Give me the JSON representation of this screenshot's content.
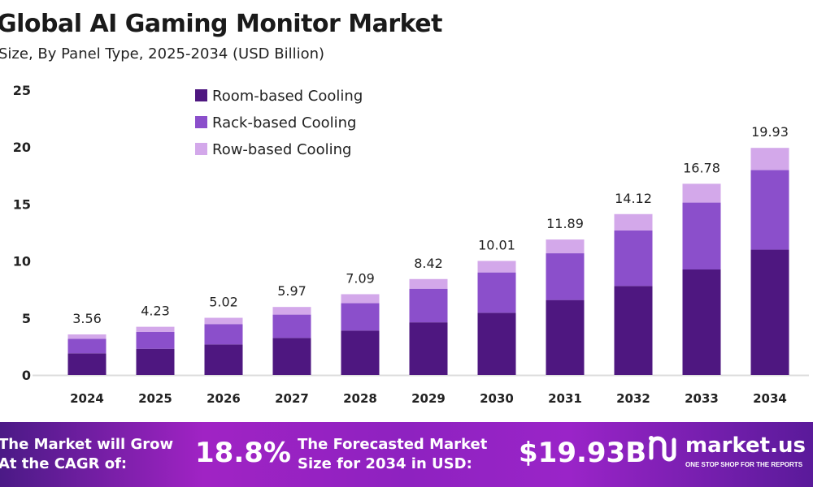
{
  "chart_data": {
    "type": "bar",
    "stacked": true,
    "title": "Global AI Gaming Monitor Market",
    "subtitle": "Size, By Panel Type, 2025-2034 (USD Billion)",
    "xlabel": "",
    "ylabel": "",
    "ylim": [
      0,
      25
    ],
    "yticks": [
      "0",
      "5",
      "10",
      "15",
      "20",
      "25"
    ],
    "grid": false,
    "legend_position": "top-left",
    "categories": [
      "2024",
      "2025",
      "2026",
      "2027",
      "2028",
      "2029",
      "2030",
      "2031",
      "2032",
      "2033",
      "2034"
    ],
    "totals": [
      "3.56",
      "4.23",
      "5.02",
      "5.97",
      "7.09",
      "8.42",
      "10.01",
      "11.89",
      "14.12",
      "16.78",
      "19.93"
    ],
    "series": [
      {
        "name": "Room-based Cooling",
        "color": "#4e1780",
        "values": [
          1.9,
          2.3,
          2.68,
          3.25,
          3.9,
          4.62,
          5.46,
          6.58,
          7.81,
          9.26,
          11.0
        ]
      },
      {
        "name": "Rack-based Cooling",
        "color": "#8b4fcb",
        "values": [
          1.28,
          1.49,
          1.79,
          2.05,
          2.4,
          2.95,
          3.54,
          4.1,
          4.87,
          5.87,
          6.98
        ]
      },
      {
        "name": "Row-based Cooling",
        "color": "#d3a8ea",
        "values": [
          0.38,
          0.44,
          0.55,
          0.67,
          0.79,
          0.85,
          1.01,
          1.21,
          1.44,
          1.65,
          1.95
        ]
      }
    ]
  },
  "footer": {
    "cagr_label_1": "The Market will Grow",
    "cagr_label_2": "At the CAGR of:",
    "cagr_value": "18.8%",
    "forecast_label_1": "The Forecasted Market",
    "forecast_label_2": "Size for 2034 in USD:",
    "forecast_value": "$19.93B",
    "logo_text": "market.us",
    "logo_tagline": "ONE STOP SHOP FOR THE REPORTS"
  }
}
